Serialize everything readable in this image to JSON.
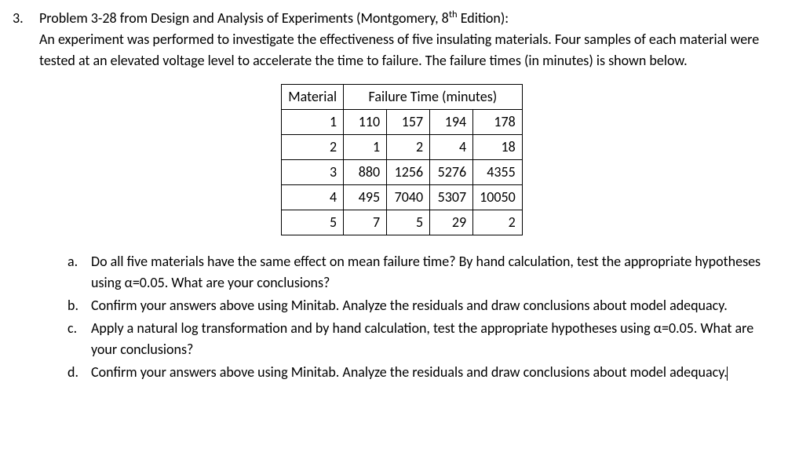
{
  "problem": {
    "number": "3.",
    "intro_line1": "Problem 3-28 from Design and Analysis of Experiments (Montgomery, 8",
    "intro_super": "th",
    "intro_line1_end": " Edition):",
    "intro_line2": "An experiment was performed to investigate the effectiveness of five insulating materials. Four samples of each material were tested at an elevated voltage level to accelerate the time to failure. The failure times (in minutes) is shown below."
  },
  "table": {
    "header_material": "Material",
    "header_failure": "Failure Time (minutes)",
    "rows": [
      {
        "material": "1",
        "vals": [
          "110",
          "157",
          "194",
          "178"
        ]
      },
      {
        "material": "2",
        "vals": [
          "1",
          "2",
          "4",
          "18"
        ]
      },
      {
        "material": "3",
        "vals": [
          "880",
          "1256",
          "5276",
          "4355"
        ]
      },
      {
        "material": "4",
        "vals": [
          "495",
          "7040",
          "5307",
          "10050"
        ]
      },
      {
        "material": "5",
        "vals": [
          "7",
          "5",
          "29",
          "2"
        ]
      }
    ]
  },
  "parts": {
    "a": {
      "letter": "a.",
      "text": "Do all five materials have the same effect on mean failure time? By hand calculation, test the appropriate hypotheses using α=0.05. What are your conclusions?"
    },
    "b": {
      "letter": "b.",
      "text": "Confirm your answers above using Minitab. Analyze the residuals and draw conclusions about model adequacy."
    },
    "c": {
      "letter": "c.",
      "text": "Apply a natural log transformation and by hand calculation, test the appropriate hypotheses using α=0.05. What are your conclusions?"
    },
    "d": {
      "letter": "d.",
      "text": "Confirm your answers above using Minitab. Analyze the residuals and draw conclusions about model adequacy."
    }
  }
}
